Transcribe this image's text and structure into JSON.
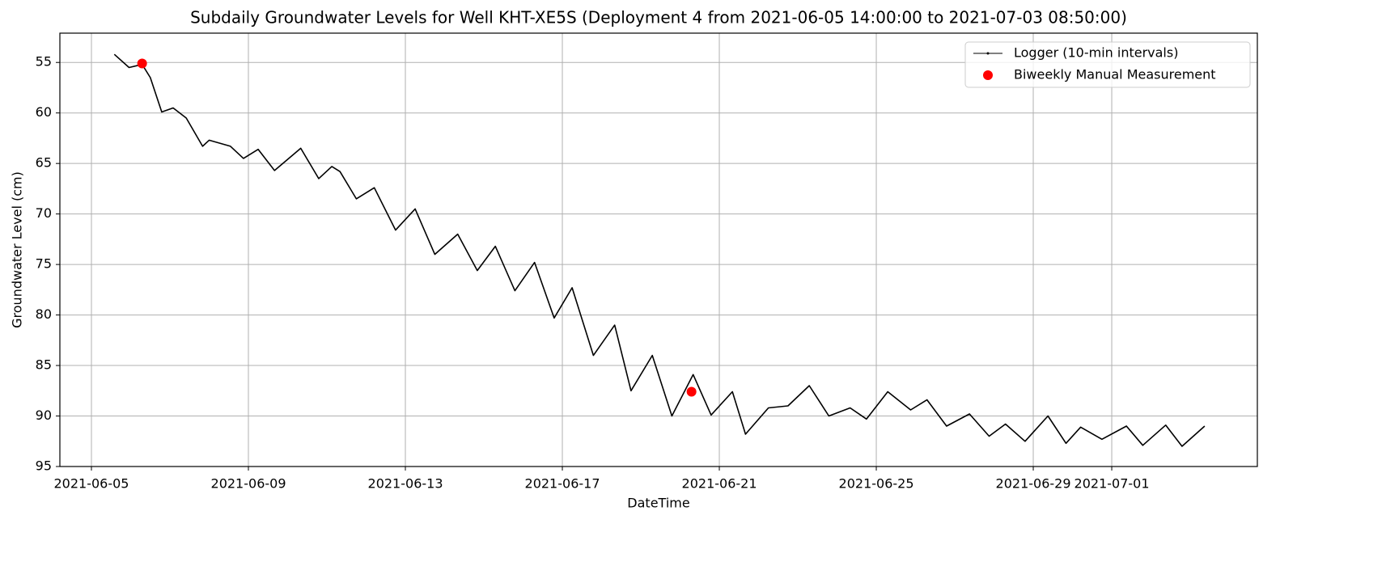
{
  "chart_data": {
    "type": "line",
    "title": "Subdaily Groundwater Levels for Well KHT-XE5S (Deployment 4 from 2021-06-05 14:00:00 to 2021-07-03 08:50:00)",
    "x_label": "DateTime",
    "y_label": "Groundwater Level (cm)",
    "xlim": [
      "2021-06-04 04:42:00",
      "2021-07-04 17:03:00"
    ],
    "xticks": [
      "2021-06-05",
      "2021-06-09",
      "2021-06-13",
      "2021-06-17",
      "2021-06-21",
      "2021-06-25",
      "2021-06-29",
      "2021-07-01"
    ],
    "ylim": [
      52.1,
      95
    ],
    "y_inverted": true,
    "yticks": [
      55,
      60,
      65,
      70,
      75,
      80,
      85,
      90,
      95
    ],
    "grid": true,
    "legend_position": "upper-right",
    "series": [
      {
        "name": "Logger (10-min intervals)",
        "type": "line",
        "color": "#000000",
        "x": [
          "2021-06-05 14:00:00",
          "2021-06-05 23:00:00",
          "2021-06-06 07:00:00",
          "2021-06-06 12:00:00",
          "2021-06-06 19:00:00",
          "2021-06-07 02:00:00",
          "2021-06-07 10:00:00",
          "2021-06-07 20:00:00",
          "2021-06-08 00:00:00",
          "2021-06-08 13:00:00",
          "2021-06-08 21:00:00",
          "2021-06-09 06:00:00",
          "2021-06-09 16:00:00",
          "2021-06-10 08:00:00",
          "2021-06-10 19:00:00",
          "2021-06-11 03:00:00",
          "2021-06-11 08:00:00",
          "2021-06-11 18:00:00",
          "2021-06-12 05:00:00",
          "2021-06-12 18:00:00",
          "2021-06-13 06:00:00",
          "2021-06-13 18:00:00",
          "2021-06-14 08:00:00",
          "2021-06-14 20:00:00",
          "2021-06-15 07:00:00",
          "2021-06-15 19:00:00",
          "2021-06-16 07:00:00",
          "2021-06-16 19:00:00",
          "2021-06-17 06:00:00",
          "2021-06-17 19:00:00",
          "2021-06-18 08:00:00",
          "2021-06-18 18:00:00",
          "2021-06-19 07:00:00",
          "2021-06-19 19:00:00",
          "2021-06-20 08:00:00",
          "2021-06-20 19:00:00",
          "2021-06-21 08:00:00",
          "2021-06-21 16:00:00",
          "2021-06-22 06:00:00",
          "2021-06-22 18:00:00",
          "2021-06-23 07:00:00",
          "2021-06-23 19:00:00",
          "2021-06-24 08:00:00",
          "2021-06-24 18:00:00",
          "2021-06-25 07:00:00",
          "2021-06-25 21:00:00",
          "2021-06-26 07:00:00",
          "2021-06-26 19:00:00",
          "2021-06-27 09:00:00",
          "2021-06-27 21:00:00",
          "2021-06-28 07:00:00",
          "2021-06-28 19:00:00",
          "2021-06-29 09:00:00",
          "2021-06-29 20:00:00",
          "2021-06-30 05:00:00",
          "2021-06-30 18:00:00",
          "2021-07-01 09:00:00",
          "2021-07-01 19:00:00",
          "2021-07-02 09:00:00",
          "2021-07-02 19:00:00",
          "2021-07-03 08:50:00"
        ],
        "values": [
          54.2,
          55.5,
          55.2,
          56.5,
          59.9,
          59.5,
          60.5,
          63.3,
          62.7,
          63.3,
          64.5,
          63.6,
          65.7,
          63.5,
          66.5,
          65.3,
          65.8,
          68.5,
          67.4,
          71.6,
          69.5,
          74.0,
          72.0,
          75.6,
          73.2,
          77.6,
          74.8,
          80.3,
          77.3,
          84.0,
          81.0,
          87.5,
          84.0,
          90.0,
          85.9,
          89.9,
          87.6,
          91.8,
          89.2,
          89.0,
          87.0,
          90.0,
          89.2,
          90.3,
          87.6,
          89.4,
          88.4,
          91.0,
          89.8,
          92.0,
          90.8,
          92.5,
          90.0,
          92.7,
          91.1,
          92.3,
          91.0,
          92.9,
          90.9,
          93.0,
          91.0
        ]
      },
      {
        "name": "Biweekly Manual Measurement",
        "type": "scatter",
        "color": "#ff0000",
        "x": [
          "2021-06-06 07:00:00",
          "2021-06-20 07:00:00"
        ],
        "values": [
          55.1,
          87.6
        ]
      }
    ]
  }
}
